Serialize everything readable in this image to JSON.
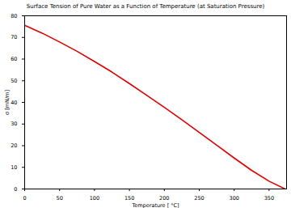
{
  "chart_data": {
    "type": "line",
    "title": "Surface Tension of Pure Water as a Function of Temperature (at Saturation Pressure)",
    "x_label": "Temperature [ °C]",
    "y_label": "σ [mN/m]",
    "x": [
      0,
      25,
      50,
      75,
      100,
      125,
      150,
      175,
      200,
      225,
      250,
      275,
      300,
      325,
      350,
      373
    ],
    "series": [
      {
        "name": "σ",
        "color": "#dd0000",
        "values": [
          75.6,
          72.0,
          67.9,
          63.6,
          58.9,
          54.0,
          48.7,
          43.2,
          37.7,
          32.0,
          26.1,
          20.2,
          14.3,
          8.6,
          3.6,
          0
        ]
      }
    ],
    "xlim": [
      0,
      375
    ],
    "xticks": [
      0,
      50,
      100,
      150,
      200,
      250,
      300,
      350
    ],
    "ylim": [
      0,
      80
    ],
    "yticks": [
      0,
      10,
      20,
      30,
      40,
      50,
      60,
      70,
      80
    ],
    "grid": false
  }
}
